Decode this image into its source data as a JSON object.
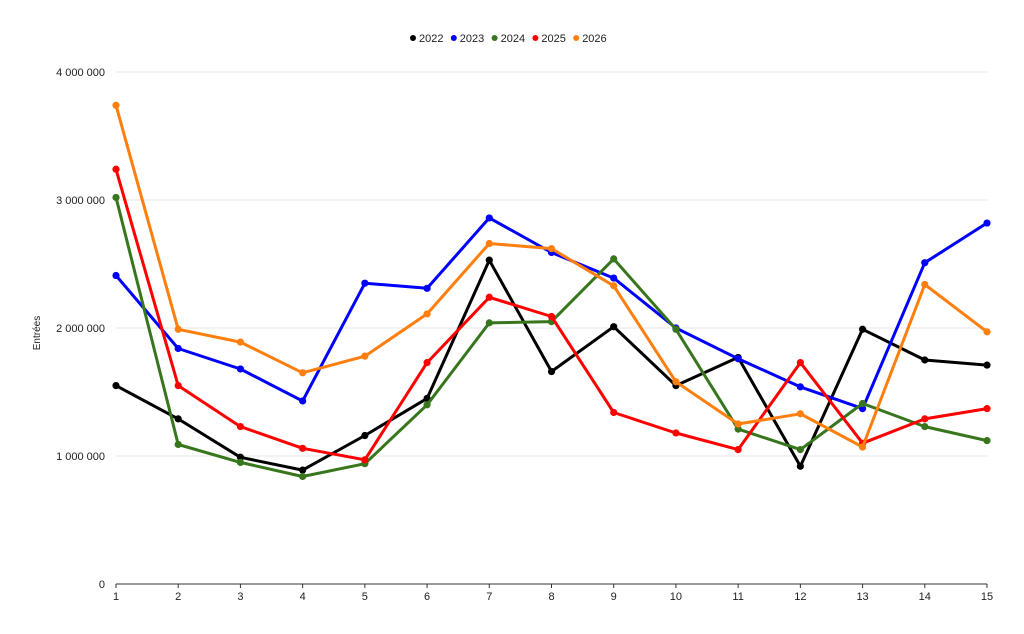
{
  "chart_data": {
    "type": "line",
    "title": "",
    "xlabel": "",
    "ylabel": "Entrées",
    "x": [
      1,
      2,
      3,
      4,
      5,
      6,
      7,
      8,
      9,
      10,
      11,
      12,
      13,
      14,
      15
    ],
    "x_tick_labels": [
      "1",
      "2",
      "3",
      "4",
      "5",
      "6",
      "7",
      "8",
      "9",
      "10",
      "11",
      "12",
      "13",
      "14",
      "15"
    ],
    "ylim": [
      0,
      4000000
    ],
    "y_ticks": [
      0,
      1000000,
      2000000,
      3000000,
      4000000
    ],
    "y_tick_labels": [
      "0",
      "1 000 000",
      "2 000 000",
      "3 000 000",
      "4 000 000"
    ],
    "grid": true,
    "legend_position": "top-center",
    "series": [
      {
        "name": "2022",
        "color": "#000000",
        "values": [
          1550000,
          1290000,
          990000,
          890000,
          1160000,
          1450000,
          2530000,
          1660000,
          2010000,
          1550000,
          1770000,
          920000,
          1990000,
          1750000,
          1710000
        ]
      },
      {
        "name": "2023",
        "color": "#0000ff",
        "values": [
          2410000,
          1840000,
          1680000,
          1430000,
          2350000,
          2310000,
          2860000,
          2590000,
          2390000,
          2000000,
          1760000,
          1540000,
          1370000,
          2510000,
          2820000
        ]
      },
      {
        "name": "2024",
        "color": "#38761d",
        "values": [
          3020000,
          1090000,
          950000,
          840000,
          940000,
          1400000,
          2040000,
          2050000,
          2540000,
          1990000,
          1210000,
          1050000,
          1410000,
          1230000,
          1120000
        ]
      },
      {
        "name": "2025",
        "color": "#ff0000",
        "values": [
          3240000,
          1550000,
          1230000,
          1060000,
          970000,
          1730000,
          2240000,
          2090000,
          1340000,
          1180000,
          1050000,
          1730000,
          1100000,
          1290000,
          1370000
        ]
      },
      {
        "name": "2026",
        "color": "#ff7f0e",
        "values": [
          3740000,
          1990000,
          1890000,
          1650000,
          1780000,
          2110000,
          2660000,
          2620000,
          2330000,
          1580000,
          1250000,
          1330000,
          1070000,
          2340000,
          1970000
        ]
      }
    ]
  }
}
